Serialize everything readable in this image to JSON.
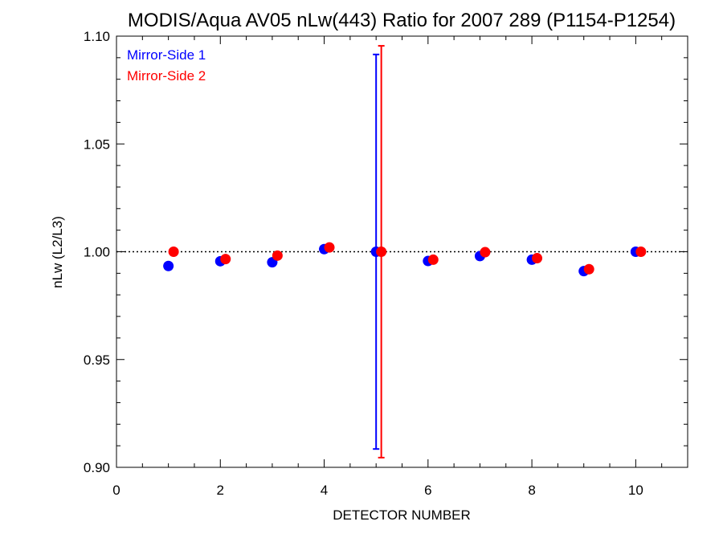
{
  "chart_data": {
    "type": "scatter",
    "title": "MODIS/Aqua AV05 nLw(443) Ratio for 2007 289 (P1154-P1254)",
    "xlabel": "DETECTOR NUMBER",
    "ylabel": "nLw (L2/L3)",
    "xlim": [
      0,
      11
    ],
    "ylim": [
      0.9,
      1.1
    ],
    "x_ticks": [
      0,
      2,
      4,
      6,
      8,
      10
    ],
    "x_tick_labels": [
      "0",
      "2",
      "4",
      "6",
      "8",
      "10"
    ],
    "y_ticks": [
      0.9,
      0.95,
      1.0,
      1.05,
      1.1
    ],
    "y_tick_labels": [
      "0.90",
      "0.95",
      "1.00",
      "1.05",
      "1.10"
    ],
    "reference_line": 1.0,
    "legend_position": "top-left",
    "series": [
      {
        "name": "Mirror-Side 1",
        "color": "#0000ff",
        "x": [
          1,
          2,
          3,
          4,
          5,
          6,
          7,
          8,
          9,
          10
        ],
        "y": [
          0.9934,
          0.9956,
          0.9951,
          1.0012,
          1.0,
          0.9957,
          0.998,
          0.9963,
          0.991,
          1.0
        ],
        "error_bars": [
          {
            "x": 5,
            "low": 0.9085,
            "high": 1.0915
          }
        ]
      },
      {
        "name": "Mirror-Side 2",
        "color": "#ff0000",
        "x": [
          1,
          2,
          3,
          4,
          5,
          6,
          7,
          8,
          9,
          10
        ],
        "y": [
          1.0,
          0.9966,
          0.9982,
          1.002,
          1.0,
          0.9963,
          0.9998,
          0.997,
          0.9919,
          1.0
        ],
        "x_offset": 0.1,
        "error_bars": [
          {
            "x": 5,
            "low": 0.9045,
            "high": 1.0955
          }
        ]
      }
    ]
  }
}
